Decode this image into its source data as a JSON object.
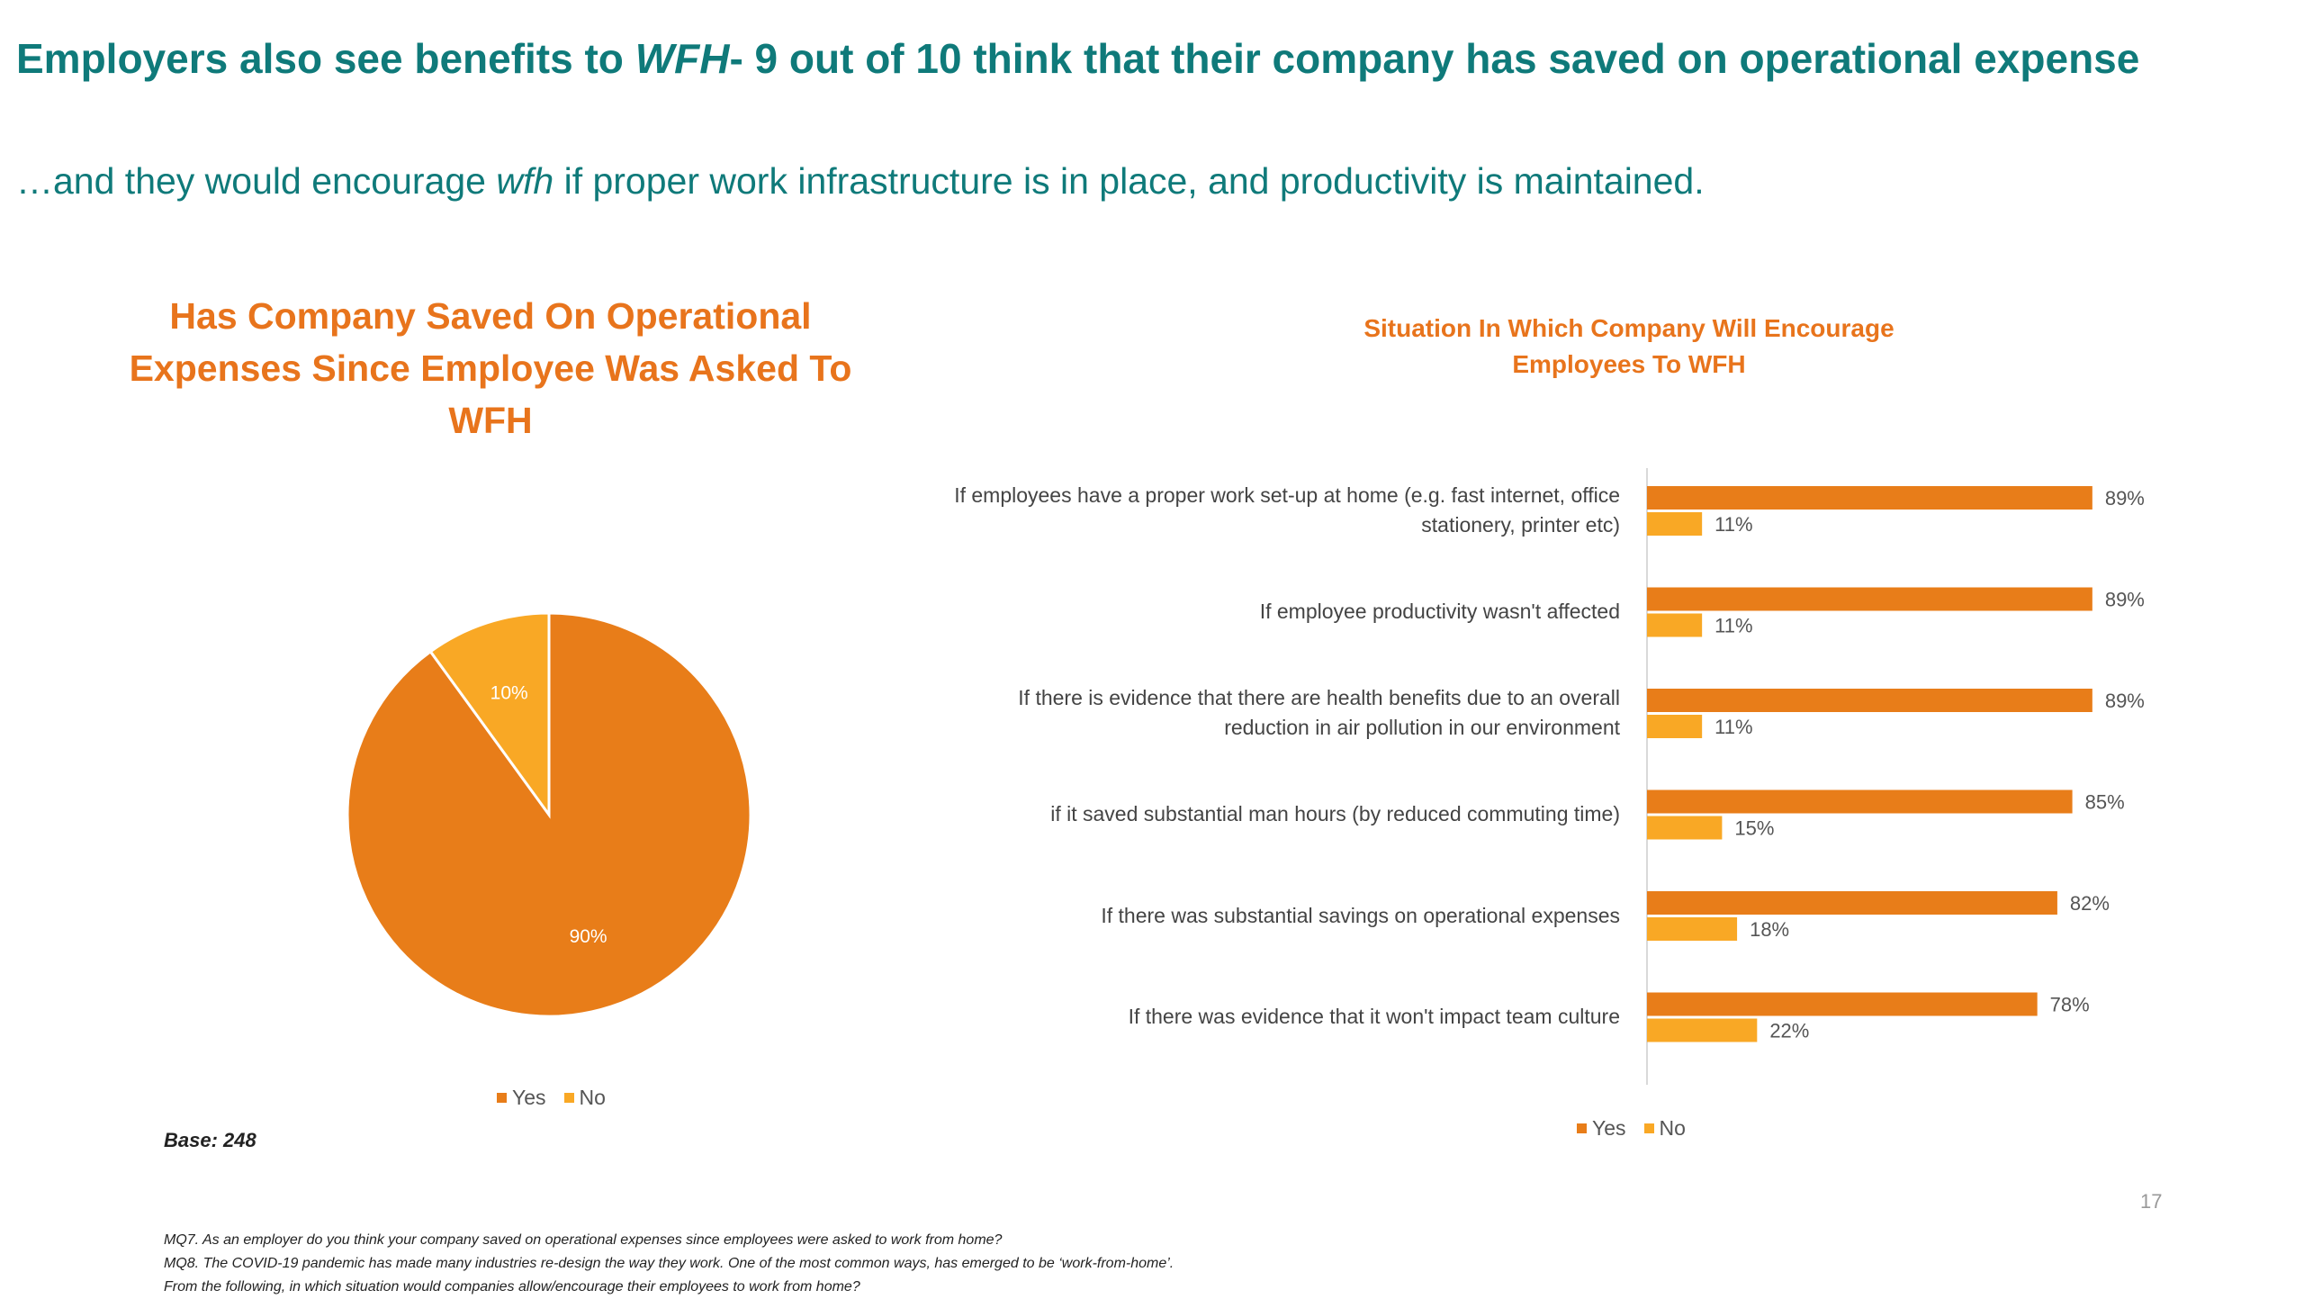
{
  "header": {
    "headline_a": "Employers also see benefits to ",
    "headline_em": "WFH",
    "headline_b": "- 9 out of 10 think that their company has saved on operational expense",
    "sub_a": "…and they would encourage ",
    "sub_em": "wfh",
    "sub_b": " if proper work infrastructure is in place, and productivity is maintained."
  },
  "colors": {
    "yes": "#e87d19",
    "no": "#f9a825",
    "title": "#0f7a7a",
    "chart_title": "#e8741c"
  },
  "chart_data": [
    {
      "type": "pie",
      "title": "Has Company Saved On Operational Expenses Since Employee Was Asked To WFH",
      "slices": [
        {
          "name": "Yes",
          "value": 90,
          "label": "90%"
        },
        {
          "name": "No",
          "value": 10,
          "label": "10%"
        }
      ],
      "legend": [
        "Yes",
        "No"
      ],
      "legend_position": "bottom"
    },
    {
      "type": "bar",
      "orientation": "horizontal",
      "title": "Situation In Which Company Will Encourage Employees To WFH",
      "categories": [
        "If employees have a proper work set-up at home (e.g. fast internet, office stationery, printer etc)",
        "If employee productivity wasn't affected",
        "If there is evidence that there are health benefits due to an overall reduction in air pollution in our environment",
        "if it saved substantial man hours (by reduced commuting time)",
        "If there was substantial savings on operational expenses",
        "If there was evidence that it won't impact team culture"
      ],
      "series": [
        {
          "name": "Yes",
          "values": [
            89,
            89,
            89,
            85,
            82,
            78
          ]
        },
        {
          "name": "No",
          "values": [
            11,
            11,
            11,
            15,
            18,
            22
          ]
        }
      ],
      "unit": "%",
      "xlim": [
        0,
        100
      ],
      "legend_position": "bottom"
    }
  ],
  "base_label": "Base: 248",
  "page_number": "17",
  "footnotes": [
    "MQ7. As an employer do you think your company saved on operational expenses since employees were asked to work from home?",
    "MQ8. The COVID-19 pandemic has made many industries re-design the way they work. One of the most common ways, has emerged to be ‘work-from-home’.",
    "From the following, in which situation would companies allow/encourage their employees to work from home?"
  ]
}
